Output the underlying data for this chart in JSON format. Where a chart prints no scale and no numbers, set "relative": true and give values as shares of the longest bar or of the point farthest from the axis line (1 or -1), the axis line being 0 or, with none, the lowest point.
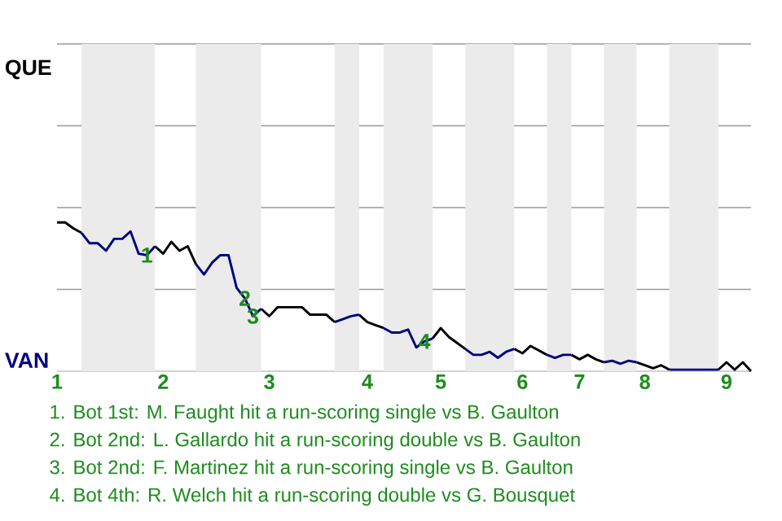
{
  "chart_data": {
    "type": "line",
    "relative": true,
    "categories": [
      "1",
      null,
      null,
      null,
      null,
      null,
      null,
      null,
      null,
      null,
      null,
      null,
      null,
      "2",
      null,
      null,
      null,
      null,
      null,
      null,
      null,
      null,
      null,
      null,
      null,
      null,
      "3",
      null,
      null,
      null,
      null,
      null,
      null,
      null,
      null,
      null,
      null,
      null,
      "4",
      null,
      null,
      null,
      null,
      null,
      null,
      null,
      null,
      "5",
      null,
      null,
      null,
      null,
      null,
      null,
      null,
      null,
      null,
      "6",
      null,
      null,
      null,
      null,
      null,
      null,
      "7",
      null,
      null,
      null,
      null,
      null,
      null,
      null,
      "8",
      null,
      null,
      null,
      null,
      null,
      null,
      null,
      null,
      null,
      "9",
      null,
      null,
      null
    ],
    "marker": "none",
    "line_style": "solid",
    "ref_lines": [
      {
        "axis": "y",
        "value": 0.55,
        "color": "#999999"
      },
      {
        "axis": "y",
        "value": 1.1,
        "color": "#999999"
      },
      {
        "axis": "y",
        "value": 1.65,
        "color": "#999999"
      },
      {
        "axis": "y",
        "value": 2.2,
        "color": "#999999"
      }
    ],
    "series": [
      {
        "color": "#000000",
        "values": [
          1,
          1,
          0.96,
          0.93,
          null,
          null,
          null,
          null,
          null,
          null,
          null,
          null,
          0.84,
          0.79,
          0.87,
          0.81,
          0.84,
          0.72,
          null,
          null,
          null,
          null,
          null,
          null,
          null,
          0.42,
          0.37,
          0.43,
          0.43,
          0.43,
          0.43,
          0.38,
          0.38,
          0.38,
          0.33,
          null,
          null,
          0.38,
          0.33,
          0.31,
          0.29,
          null,
          null,
          null,
          null,
          null,
          0.22,
          0.29,
          0.23,
          0.19,
          0.15,
          null,
          null,
          null,
          null,
          null,
          0.15,
          0.12,
          0.17,
          0.14,
          0.11,
          null,
          null,
          0.11,
          0.08,
          0.11,
          0.08,
          0.06,
          null,
          null,
          null,
          0.06,
          0.04,
          0.02,
          0.04,
          0.01,
          null,
          null,
          null,
          null,
          null,
          0.01,
          0.06,
          0.01,
          0.06,
          0
        ]
      },
      {
        "color": "#000080",
        "values": [
          null,
          null,
          null,
          0.93,
          0.86,
          0.86,
          0.81,
          0.89,
          0.89,
          0.94,
          0.79,
          0.78,
          0.84,
          null,
          null,
          null,
          null,
          0.72,
          0.65,
          0.73,
          0.78,
          0.78,
          0.56,
          0.49,
          0.37,
          0.42,
          null,
          null,
          null,
          null,
          null,
          null,
          null,
          null,
          0.33,
          0.35,
          0.37,
          0.38,
          null,
          null,
          0.29,
          0.26,
          0.26,
          0.28,
          0.16,
          0.2,
          0.22,
          null,
          null,
          null,
          0.15,
          0.11,
          0.11,
          0.13,
          0.09,
          0.13,
          0.15,
          null,
          null,
          null,
          0.11,
          0.09,
          0.11,
          0.11,
          null,
          null,
          null,
          0.06,
          0.07,
          0.05,
          0.07,
          0.06,
          null,
          null,
          null,
          0.01,
          0.01,
          0.01,
          0.01,
          0.01,
          0.01,
          0.01,
          null,
          null,
          null,
          null
        ]
      }
    ],
    "annotations": [
      "QUE",
      "VAN",
      {
        "text": "1",
        "y": 0.78
      },
      {
        "text": "2",
        "y": 0.49
      },
      {
        "text": "3",
        "y": 0.37
      },
      {
        "text": "4",
        "y": 0.2
      },
      "1. Bot 1st: M. Faught hit a run-scoring single vs B. Gaulton",
      "2. Bot 2nd: L. Gallardo hit a run-scoring double vs B. Gaulton",
      "3. Bot 2nd: F. Martinez hit a run-scoring single vs B. Gaulton",
      "4. Bot 4th: R. Welch hit a run-scoring double vs G. Bousquet"
    ]
  }
}
